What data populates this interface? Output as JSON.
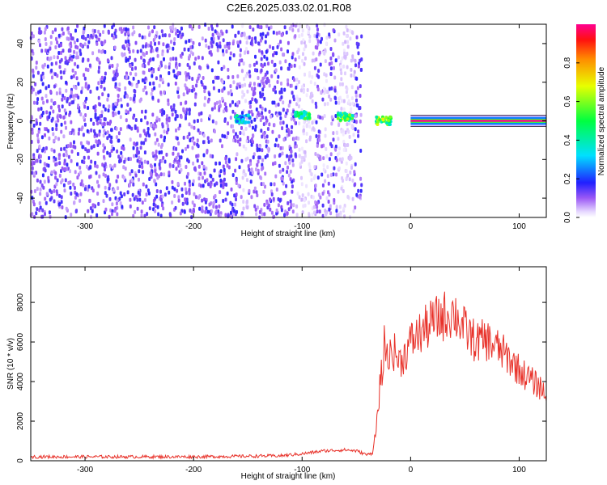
{
  "title": "C2E6.2025.033.02.01.R08",
  "chart_data": [
    {
      "type": "heatmap",
      "title": "C2E6.2025.033.02.01.R08",
      "xlabel": "Height of straight line (km)",
      "ylabel": "Frequency (Hz)",
      "xlim": [
        -350,
        125
      ],
      "ylim": [
        -50,
        50
      ],
      "x_ticks": [
        -300,
        -200,
        -100,
        0,
        100
      ],
      "y_ticks": [
        -40,
        -20,
        0,
        20,
        40
      ],
      "colorbar": {
        "label": "Normalized spectral amplitude",
        "range": [
          0,
          1
        ],
        "ticks": [
          0.0,
          0.2,
          0.4,
          0.6,
          0.8
        ]
      },
      "features": {
        "noise_region_x": [
          -350,
          -45
        ],
        "gaps_x": [
          [
            -155,
            -150
          ],
          [
            -105,
            -88
          ],
          [
            -80,
            -76
          ],
          [
            -68,
            -52
          ]
        ],
        "blobs": [
          {
            "x": -155,
            "freq": 1,
            "amp": 0.4
          },
          {
            "x": -100,
            "freq": 3,
            "amp": 0.55
          },
          {
            "x": -60,
            "freq": 2,
            "amp": 0.6
          },
          {
            "x": -25,
            "freq": 0,
            "amp": 0.65
          }
        ],
        "tone": {
          "x_start": 0,
          "x_end": 125,
          "freq": 0,
          "amp": 1.0
        }
      }
    },
    {
      "type": "line",
      "xlabel": "Height of straight line (km)",
      "ylabel": "SNR (10 * v/v)",
      "xlim": [
        -350,
        125
      ],
      "ylim": [
        0,
        9800
      ],
      "x_ticks": [
        -300,
        -200,
        -100,
        0,
        100
      ],
      "y_ticks": [
        0,
        2000,
        4000,
        6000,
        8000
      ],
      "color": "#e8322a",
      "series": [
        {
          "x": [
            -350,
            -300,
            -250,
            -200,
            -150,
            -120,
            -100,
            -80,
            -60,
            -50,
            -40,
            -35,
            -30,
            -28,
            -25,
            -22,
            -20,
            -18,
            -15,
            -10,
            -5,
            0,
            10,
            20,
            30,
            40,
            50,
            60,
            70,
            80,
            90,
            100,
            110,
            120,
            125
          ],
          "values": [
            200,
            200,
            200,
            200,
            230,
            250,
            350,
            500,
            550,
            500,
            300,
            400,
            2500,
            4000,
            5000,
            6200,
            5200,
            5600,
            5500,
            5000,
            5400,
            6000,
            6500,
            7000,
            7300,
            7500,
            6600,
            6000,
            6100,
            5700,
            5200,
            4600,
            4100,
            3700,
            3300
          ]
        }
      ]
    }
  ]
}
